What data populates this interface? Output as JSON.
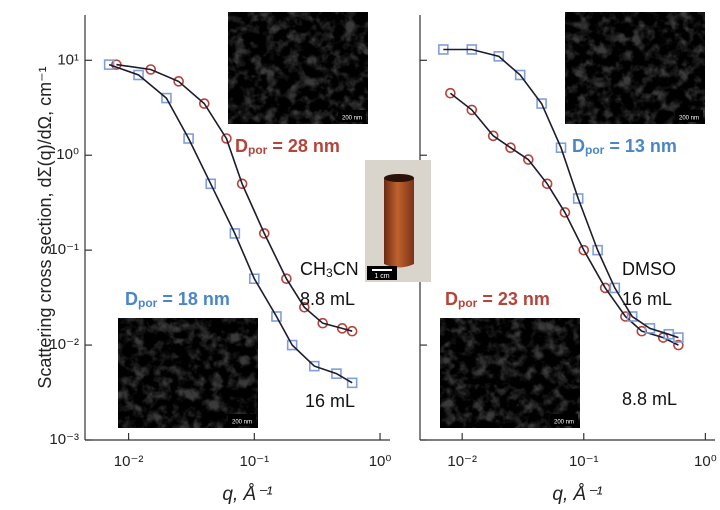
{
  "chart_data": [
    {
      "type": "scatter",
      "x_scale": "log",
      "y_scale": "log",
      "y_label": "Scattering cross section, dΣ(q)/dΩ, cm⁻¹",
      "x_label": "q, Å⁻¹",
      "xlim": [
        0.0045,
        1.2
      ],
      "ylim": [
        0.001,
        30
      ],
      "xticks": [
        {
          "value": 0.01,
          "label": "10⁻²"
        },
        {
          "value": 0.1,
          "label": "10⁻¹"
        },
        {
          "value": 1,
          "label": "10⁰"
        }
      ],
      "yticks": [
        {
          "value": 0.001,
          "label": "10⁻³"
        },
        {
          "value": 0.01,
          "label": "10⁻²"
        },
        {
          "value": 0.1,
          "label": "10⁻¹"
        },
        {
          "value": 1,
          "label": "10⁰"
        },
        {
          "value": 10,
          "label": "10¹"
        }
      ],
      "show_ytick_labels": true,
      "series": [
        {
          "color": "#b5443a",
          "marker": "circle",
          "fit_color": "#1c1c2e",
          "x": [
            0.008,
            0.015,
            0.025,
            0.04,
            0.06,
            0.08,
            0.12,
            0.18,
            0.25,
            0.35,
            0.5,
            0.6
          ],
          "values": [
            9,
            8,
            6,
            3.5,
            1.5,
            0.5,
            0.15,
            0.05,
            0.025,
            0.017,
            0.015,
            0.014
          ]
        },
        {
          "color": "#7f9fd8",
          "marker": "square",
          "fit_color": "#1c1c2e",
          "x": [
            0.007,
            0.012,
            0.02,
            0.03,
            0.045,
            0.07,
            0.1,
            0.15,
            0.2,
            0.3,
            0.45,
            0.6
          ],
          "values": [
            9,
            7,
            4,
            1.5,
            0.5,
            0.15,
            0.05,
            0.02,
            0.01,
            0.006,
            0.005,
            0.004
          ]
        }
      ],
      "annotations": [
        {
          "color": "#b5443a",
          "bold": true,
          "parts": [
            {
              "t": "D"
            },
            {
              "t": "por",
              "sub": true
            },
            {
              "t": " = 28 nm"
            }
          ]
        },
        {
          "color": "#111111",
          "bold": false,
          "parts": [
            {
              "t": "CH"
            },
            {
              "t": "3",
              "sub": true
            },
            {
              "t": "CN"
            }
          ]
        },
        {
          "color": "#111111",
          "bold": false,
          "parts": [
            {
              "t": "8.8 mL"
            }
          ]
        },
        {
          "color": "#4a86c8",
          "bold": true,
          "parts": [
            {
              "t": "D"
            },
            {
              "t": "por",
              "sub": true
            },
            {
              "t": " = 18 nm"
            }
          ]
        },
        {
          "color": "#111111",
          "bold": false,
          "parts": [
            {
              "t": "16 mL"
            }
          ]
        }
      ],
      "insets": [
        {
          "scale_label": "200 nm"
        },
        {
          "scale_label": "200 nm"
        }
      ]
    },
    {
      "type": "scatter",
      "x_scale": "log",
      "y_scale": "log",
      "x_label": "q, Å⁻¹",
      "xlim": [
        0.0045,
        1.2
      ],
      "ylim": [
        0.001,
        30
      ],
      "xticks": [
        {
          "value": 0.01,
          "label": "10⁻²"
        },
        {
          "value": 0.1,
          "label": "10⁻¹"
        },
        {
          "value": 1,
          "label": "10⁰"
        }
      ],
      "yticks": [
        0.001,
        0.01,
        0.1,
        1,
        10
      ],
      "show_ytick_labels": false,
      "series": [
        {
          "color": "#b5443a",
          "marker": "circle",
          "fit_color": "#1c1c2e",
          "x": [
            0.008,
            0.012,
            0.018,
            0.025,
            0.035,
            0.05,
            0.07,
            0.1,
            0.15,
            0.22,
            0.3,
            0.45,
            0.6
          ],
          "values": [
            4.5,
            3,
            1.6,
            1.2,
            0.9,
            0.5,
            0.25,
            0.1,
            0.04,
            0.02,
            0.014,
            0.012,
            0.01
          ]
        },
        {
          "color": "#7f9fd8",
          "marker": "square",
          "fit_color": "#1c1c2e",
          "x": [
            0.007,
            0.012,
            0.02,
            0.03,
            0.045,
            0.065,
            0.09,
            0.13,
            0.18,
            0.25,
            0.35,
            0.5,
            0.6
          ],
          "values": [
            13,
            13,
            11,
            7,
            3.5,
            1.2,
            0.35,
            0.1,
            0.04,
            0.02,
            0.015,
            0.013,
            0.012
          ]
        }
      ],
      "annotations": [
        {
          "color": "#4a86c8",
          "bold": true,
          "parts": [
            {
              "t": "D"
            },
            {
              "t": "por",
              "sub": true
            },
            {
              "t": " = 13 nm"
            }
          ]
        },
        {
          "color": "#b5443a",
          "bold": true,
          "parts": [
            {
              "t": "D"
            },
            {
              "t": "por",
              "sub": true
            },
            {
              "t": " = 23 nm"
            }
          ]
        },
        {
          "color": "#111111",
          "bold": false,
          "parts": [
            {
              "t": "DMSO"
            }
          ]
        },
        {
          "color": "#111111",
          "bold": false,
          "parts": [
            {
              "t": "16 mL"
            }
          ]
        },
        {
          "color": "#111111",
          "bold": false,
          "parts": [
            {
              "t": "8.8 mL"
            }
          ]
        }
      ],
      "insets": [
        {
          "scale_label": "200 nm"
        },
        {
          "scale_label": "200 nm"
        }
      ]
    }
  ],
  "photo": {
    "scale_label": "1 cm"
  }
}
